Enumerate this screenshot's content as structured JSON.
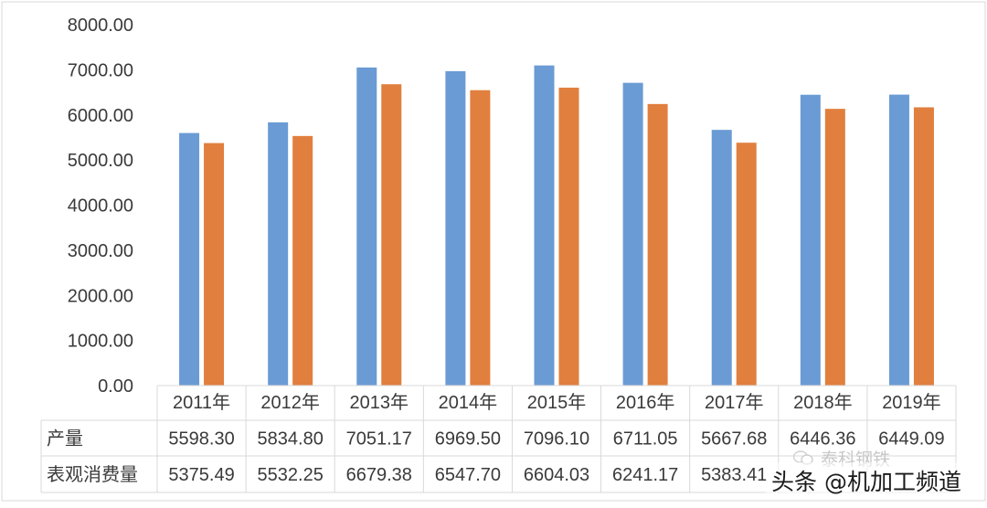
{
  "chart_data": {
    "type": "bar",
    "categories": [
      "2011年",
      "2012年",
      "2013年",
      "2014年",
      "2015年",
      "2016年",
      "2017年",
      "2018年",
      "2019年"
    ],
    "series": [
      {
        "name": "产量",
        "values": [
          5598.3,
          5834.8,
          7051.17,
          6969.5,
          7096.1,
          6711.05,
          5667.68,
          6446.36,
          6449.09
        ],
        "color": "#6A9BD4"
      },
      {
        "name": "表观消费量",
        "values": [
          5375.49,
          5532.25,
          6679.38,
          6547.7,
          6604.03,
          6241.17,
          5383.41,
          6134.0,
          6168.0
        ],
        "color": "#E17F3E"
      }
    ],
    "table_values": [
      [
        "5598.30",
        "5834.80",
        "7051.17",
        "6969.50",
        "7096.10",
        "6711.05",
        "5667.68",
        "6446.36",
        "6449.09"
      ],
      [
        "5375.49",
        "5532.25",
        "6679.38",
        "6547.70",
        "6604.03",
        "6241.17",
        "5383.41",
        "",
        ""
      ]
    ],
    "y_ticks": [
      "0.00",
      "1000.00",
      "2000.00",
      "3000.00",
      "4000.00",
      "5000.00",
      "6000.00",
      "7000.00",
      "8000.00"
    ],
    "ylim": [
      0,
      8000
    ],
    "grid": false,
    "legend": "data-table"
  },
  "watermark": {
    "text": "头条 @机加工频道",
    "source": "泰科钢铁"
  }
}
